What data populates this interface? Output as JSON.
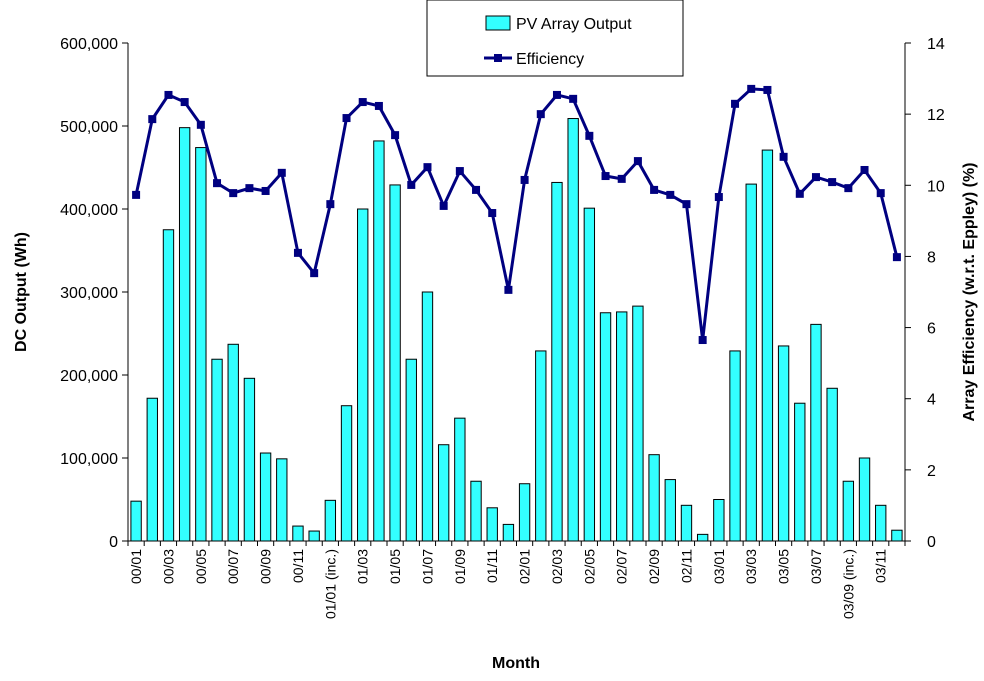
{
  "chart_data": {
    "type": "bar-line",
    "x_label": "Month",
    "y_label": "DC Output (Wh)",
    "y2_label": "Array Efficiency (w.r.t. Eppley) (%)",
    "categories": [
      "00/01",
      null,
      "00/03",
      null,
      "00/05",
      null,
      "00/07",
      null,
      "00/09",
      null,
      "00/11",
      null,
      "01/01 (inc.)",
      null,
      "01/03",
      null,
      "01/05",
      null,
      "01/07",
      null,
      "01/09",
      null,
      "01/11",
      null,
      "02/01",
      null,
      "02/03",
      null,
      "02/05",
      null,
      "02/07",
      null,
      "02/09",
      null,
      "02/11",
      null,
      "03/01",
      null,
      "03/03",
      null,
      "03/05",
      null,
      "03/07",
      null,
      "03/09 (inc.)",
      null,
      "03/11",
      null
    ],
    "series": [
      {
        "name": "PV Array Output",
        "type": "bar",
        "color": "#33ffff",
        "values": [
          48000,
          172000,
          375000,
          498000,
          474000,
          219000,
          237000,
          196000,
          106000,
          99000,
          18000,
          12000,
          49000,
          163000,
          400000,
          482000,
          429000,
          219000,
          300000,
          116000,
          148000,
          72000,
          40000,
          20000,
          69000,
          229000,
          432000,
          509000,
          401000,
          275000,
          276000,
          283000,
          104000,
          74000,
          43000,
          8000,
          50000,
          229000,
          430000,
          471000,
          235000,
          166000,
          261000,
          184000,
          72000,
          100000,
          43000,
          13000
        ]
      },
      {
        "name": "Efficiency",
        "type": "line",
        "axis": "y2",
        "color": "#000080",
        "values": [
          9.73,
          11.86,
          12.54,
          12.34,
          11.7,
          10.06,
          9.78,
          9.92,
          9.84,
          10.35,
          8.1,
          7.53,
          9.47,
          11.89,
          12.34,
          12.23,
          11.41,
          10.01,
          10.51,
          9.42,
          10.4,
          9.87,
          9.22,
          7.06,
          10.15,
          12.0,
          12.54,
          12.43,
          11.39,
          10.26,
          10.18,
          10.68,
          9.87,
          9.73,
          9.47,
          5.65,
          9.67,
          12.29,
          12.71,
          12.68,
          10.8,
          9.76,
          10.23,
          10.09,
          9.92,
          10.43,
          9.78,
          7.98
        ]
      }
    ],
    "ylim": [
      0,
      600000
    ],
    "yticks": [
      0,
      {
        "value": 100000,
        "label": "100,000"
      },
      {
        "value": 200000,
        "label": "200,000"
      },
      {
        "value": 300000,
        "label": "300,000"
      },
      {
        "value": 400000,
        "label": "400,000"
      },
      {
        "value": 500000,
        "label": "500,000"
      },
      {
        "value": 600000,
        "label": "600,000"
      }
    ],
    "y2lim": [
      0,
      14
    ],
    "y2ticks": [
      0,
      2,
      4,
      6,
      8,
      10,
      12,
      14
    ],
    "grid": false,
    "legend": "top"
  }
}
